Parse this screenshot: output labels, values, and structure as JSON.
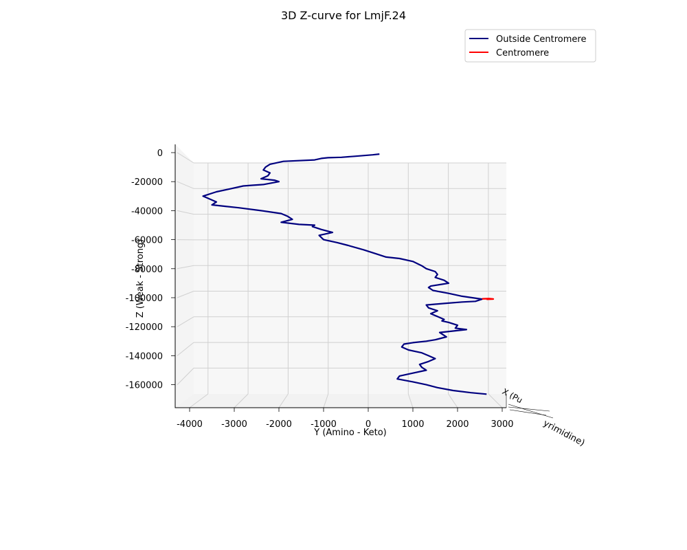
{
  "chart_data": {
    "type": "line",
    "projection": "3d",
    "title": "3D Z-curve for LmjF.24",
    "ylabel": "Y (Amino - Keto)",
    "zlabel": "Z (Weak - Strong)",
    "xlabel_fragments": [
      "X (Pu",
      "yrimidine)"
    ],
    "yticks": [
      -4000,
      -3000,
      -2000,
      -1000,
      0,
      1000,
      2000,
      3000
    ],
    "zticks": [
      0,
      -20000,
      -40000,
      -60000,
      -80000,
      -100000,
      -120000,
      -140000,
      -160000
    ],
    "ylim": [
      -4300,
      3300
    ],
    "zlim": [
      -176000,
      4000
    ],
    "grid": true,
    "legend": {
      "placement": "top-right",
      "entries": [
        {
          "name": "Outside Centromere",
          "color": "#00007f"
        },
        {
          "name": "Centromere",
          "color": "#ff0000"
        }
      ]
    },
    "series": [
      {
        "name": "Outside Centromere",
        "color": "#00007f",
        "y": [
          250,
          100,
          -300,
          -600,
          -900,
          -1050,
          -1200,
          -1900,
          -2200,
          -2300,
          -2350,
          -2200,
          -2250,
          -2400,
          -2100,
          -2000,
          -2350,
          -2600,
          -2800,
          -3100,
          -3400,
          -3700,
          -3550,
          -3400,
          -3500,
          -3200,
          -2900,
          -2400,
          -1950,
          -1800,
          -1700,
          -1950,
          -1550,
          -1200,
          -1250,
          -1050,
          -800,
          -1100,
          -1000,
          -700,
          -450,
          -100,
          200,
          400,
          700,
          1000,
          1200,
          1300,
          1500,
          1550,
          1500,
          1700,
          1800,
          1600,
          1400,
          1350,
          1450,
          1800,
          2100,
          2550,
          2400,
          2100,
          1700,
          1300,
          1350,
          1550,
          1400,
          1550,
          1700,
          1650,
          1800,
          2000,
          1950,
          2200,
          1900,
          1600,
          1650,
          1750,
          1500,
          1300,
          1000,
          800,
          750,
          900,
          1200,
          1350,
          1500,
          1350,
          1150,
          1200,
          1300,
          1000,
          700,
          650,
          1000,
          1300,
          1550,
          1900,
          2300,
          2650
        ],
        "z": [
          -1000,
          -1500,
          -2500,
          -3200,
          -3500,
          -4000,
          -5000,
          -6000,
          -8000,
          -10000,
          -12000,
          -14000,
          -16000,
          -18000,
          -19000,
          -20000,
          -22000,
          -22500,
          -23000,
          -25000,
          -27000,
          -30000,
          -32000,
          -34000,
          -36000,
          -37000,
          -38000,
          -40000,
          -42000,
          -44000,
          -46000,
          -48000,
          -49500,
          -50000,
          -51000,
          -53000,
          -55000,
          -57000,
          -60000,
          -62000,
          -64000,
          -67000,
          -70000,
          -72000,
          -73000,
          -75000,
          -78000,
          -80000,
          -82000,
          -84000,
          -86000,
          -88000,
          -90000,
          -91000,
          -92000,
          -93000,
          -95000,
          -97000,
          -99000,
          -101000,
          -102500,
          -103000,
          -104000,
          -105000,
          -107000,
          -109000,
          -111000,
          -113000,
          -115000,
          -116000,
          -117000,
          -119000,
          -121000,
          -122000,
          -123000,
          -124000,
          -125000,
          -127000,
          -129000,
          -130000,
          -131000,
          -132000,
          -134000,
          -136000,
          -138000,
          -140000,
          -142000,
          -144000,
          -146000,
          -148000,
          -150000,
          -152000,
          -154000,
          -156000,
          -158000,
          -160000,
          -162000,
          -164000,
          -165500,
          -166500
        ]
      },
      {
        "name": "Centromere",
        "color": "#ff0000",
        "y": [
          2550,
          2700,
          2800,
          2650
        ],
        "z": [
          -100800,
          -100600,
          -100900,
          -101100
        ]
      }
    ]
  }
}
